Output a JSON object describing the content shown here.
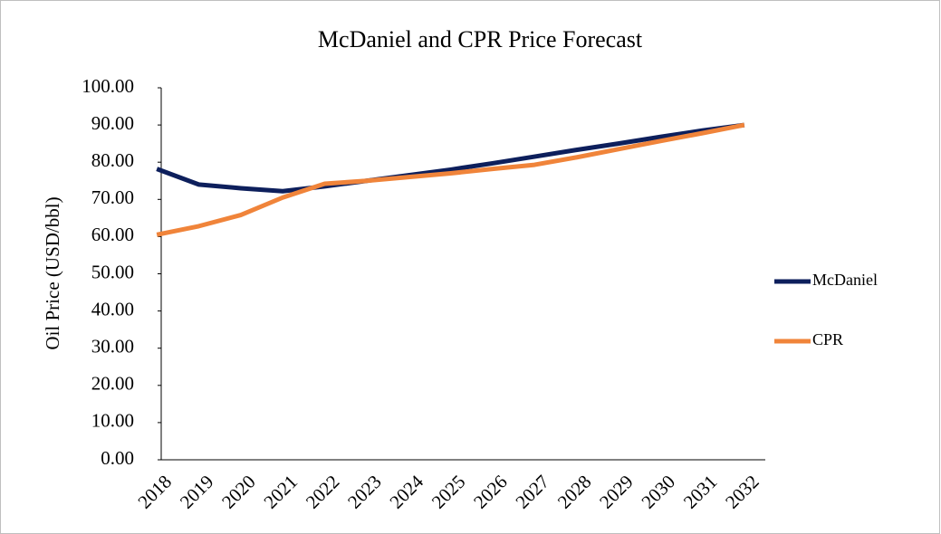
{
  "chart_data": {
    "type": "line",
    "title": "McDaniel and CPR Price Forecast",
    "y_label": "Oil Price (USD/bbl)",
    "categories": [
      "2018",
      "2019",
      "2020",
      "2021",
      "2022",
      "2023",
      "2024",
      "2025",
      "2026",
      "2027",
      "2028",
      "2029",
      "2030",
      "2031",
      "2032"
    ],
    "series": [
      {
        "name": "McDaniel",
        "color": "#0d1f5c",
        "values": [
          78.2,
          74,
          73,
          72.2,
          73.5,
          75,
          76.5,
          78,
          79.7,
          81.5,
          83.3,
          85,
          86.8,
          88.5,
          90
        ]
      },
      {
        "name": "CPR",
        "color": "#f0843a",
        "values": [
          60.5,
          62.8,
          65.8,
          70.5,
          74.2,
          75,
          76,
          77,
          78.2,
          79.3,
          81.3,
          83.5,
          85.7,
          87.8,
          90
        ]
      }
    ],
    "ylim": [
      0,
      100
    ],
    "yticks": [
      {
        "value": 0,
        "label": "0.00"
      },
      {
        "value": 10,
        "label": "10.00"
      },
      {
        "value": 20,
        "label": "20.00"
      },
      {
        "value": 30,
        "label": "30.00"
      },
      {
        "value": 40,
        "label": "40.00"
      },
      {
        "value": 50,
        "label": "50.00"
      },
      {
        "value": 60,
        "label": "60.00"
      },
      {
        "value": 70,
        "label": "70.00"
      },
      {
        "value": 80,
        "label": "80.00"
      },
      {
        "value": 90,
        "label": "90.00"
      },
      {
        "value": 100,
        "label": "100.00"
      }
    ],
    "grid": false,
    "legend": "right"
  }
}
